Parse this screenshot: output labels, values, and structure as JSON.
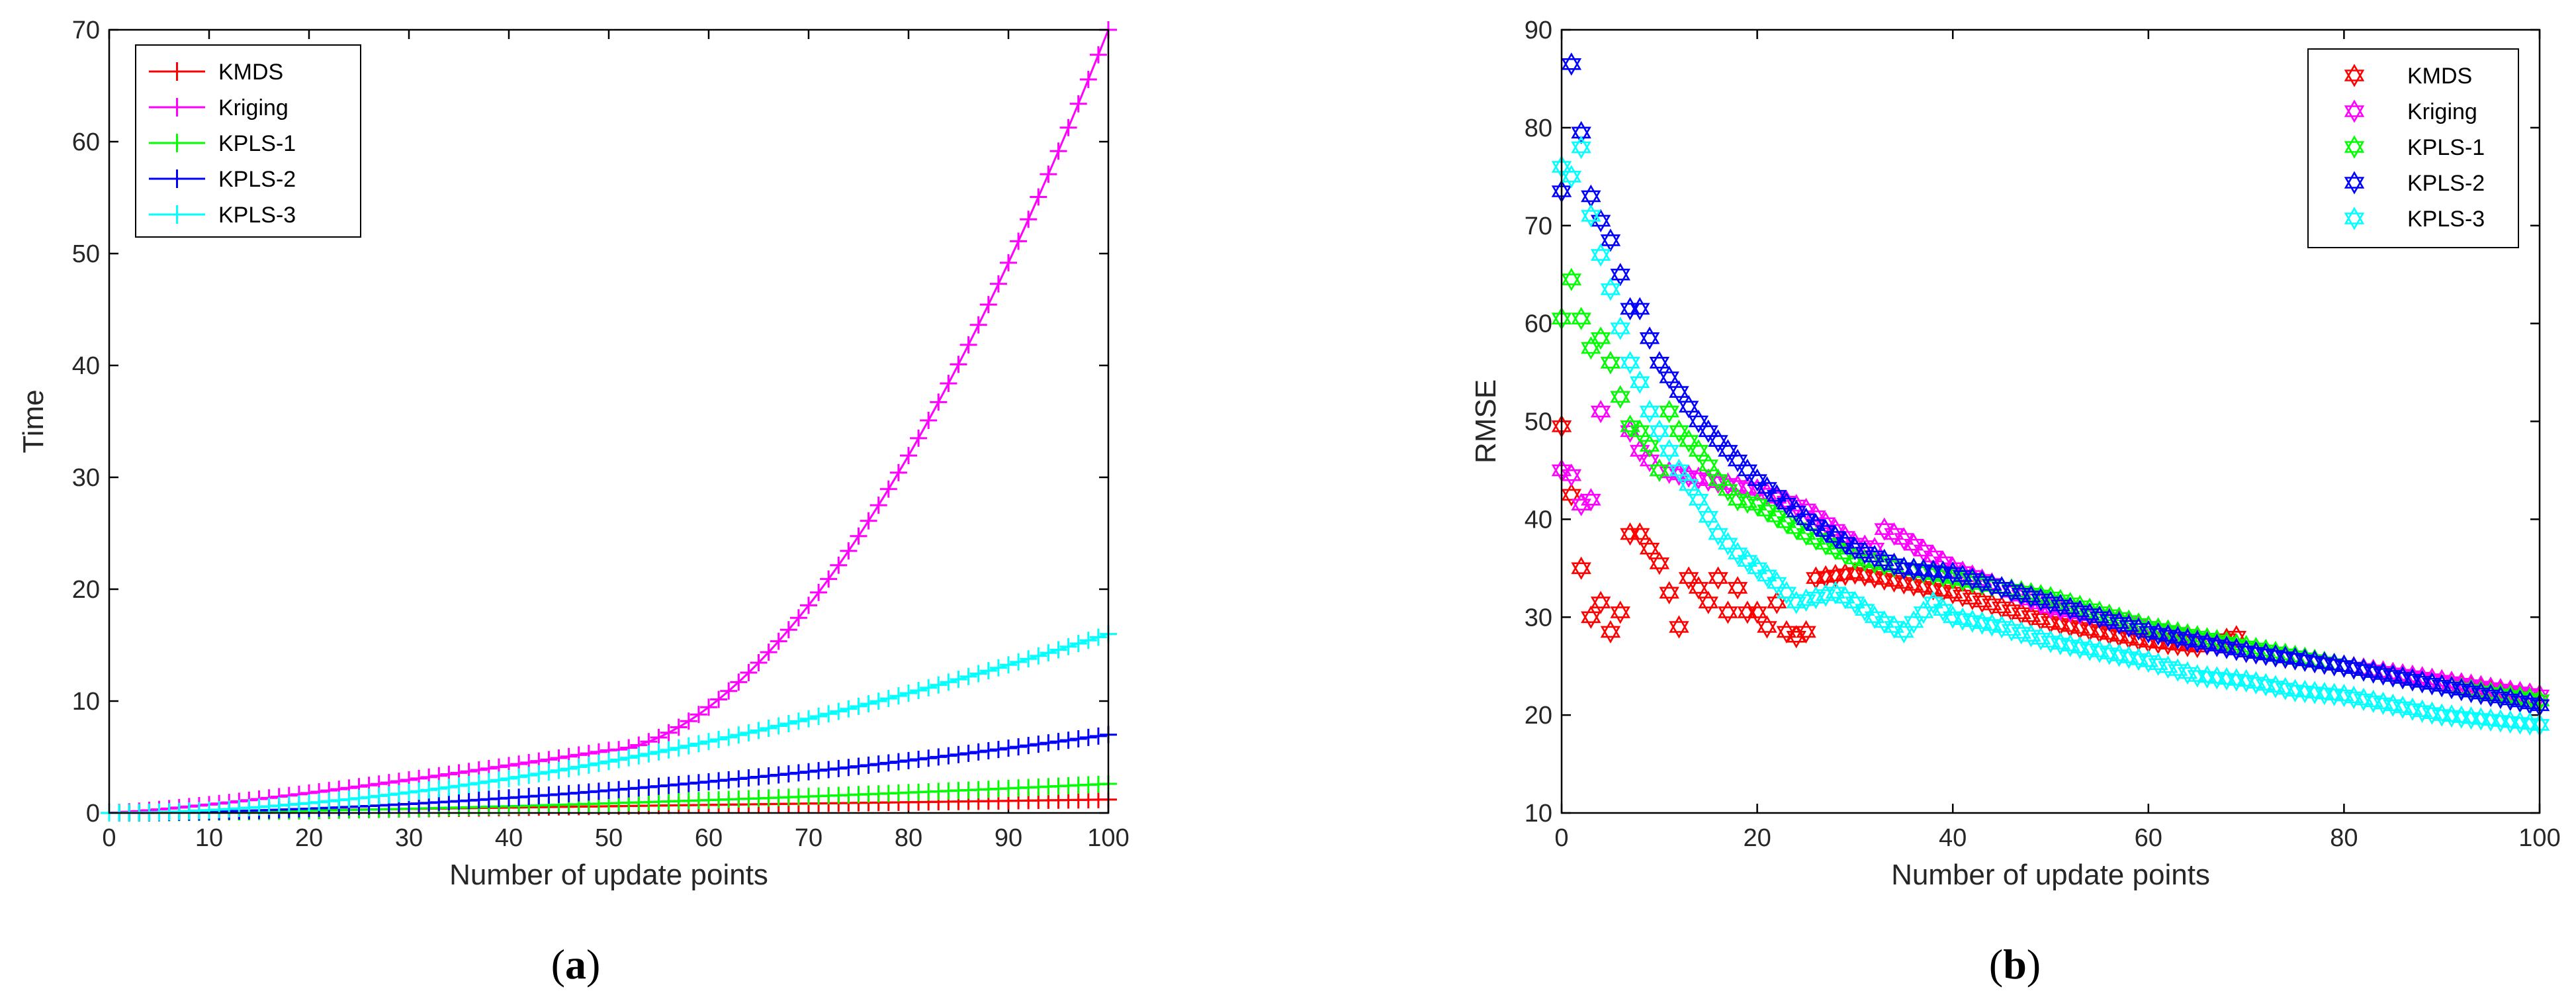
{
  "chart_data": [
    {
      "id": "a",
      "type": "line",
      "caption_open": "(",
      "caption_letter": "a",
      "caption_close": ")",
      "xlabel": "Number of update points",
      "ylabel": "Time",
      "xlim": [
        0,
        100
      ],
      "ylim": [
        0,
        70
      ],
      "xticks": [
        0,
        10,
        20,
        30,
        40,
        50,
        60,
        70,
        80,
        90,
        100
      ],
      "yticks": [
        0,
        10,
        20,
        30,
        40,
        50,
        60,
        70
      ],
      "legend_position": "top-left",
      "marker": "+",
      "series": [
        {
          "name": "KMDS",
          "color": "#ff0000",
          "model": "linear",
          "end": 1.2
        },
        {
          "name": "Kriging",
          "color": "#ff00ff",
          "model": "kriging",
          "at50": 5.6,
          "end": 70
        },
        {
          "name": "KPLS-1",
          "color": "#00ff00",
          "model": "power",
          "end": 2.6,
          "power": 1.6
        },
        {
          "name": "KPLS-2",
          "color": "#0000ff",
          "model": "power",
          "end": 7.0,
          "power": 1.8
        },
        {
          "name": "KPLS-3",
          "color": "#00ffff",
          "model": "power",
          "end": 16.0,
          "power": 1.8
        }
      ]
    },
    {
      "id": "b",
      "type": "scatter",
      "caption_open": "(",
      "caption_letter": "b",
      "caption_close": ")",
      "xlabel": "Number of update points",
      "ylabel": "RMSE",
      "xlim": [
        0,
        100
      ],
      "ylim": [
        10,
        90
      ],
      "xticks": [
        0,
        20,
        40,
        60,
        80,
        100
      ],
      "yticks": [
        10,
        20,
        30,
        40,
        50,
        60,
        70,
        80,
        90
      ],
      "legend_position": "top-right",
      "marker": "hexagram",
      "series": [
        {
          "name": "KMDS",
          "color": "#ff0000",
          "anchors": [
            [
              0,
              49.5
            ],
            [
              1,
              42.5
            ],
            [
              2,
              35
            ],
            [
              3,
              30
            ],
            [
              4,
              31.5
            ],
            [
              5,
              28.5
            ],
            [
              6,
              30.5
            ],
            [
              7,
              38.5
            ],
            [
              8,
              38.5
            ],
            [
              9,
              37
            ],
            [
              10,
              35.5
            ],
            [
              11,
              32.5
            ],
            [
              12,
              29
            ],
            [
              13,
              34
            ],
            [
              14,
              33
            ],
            [
              15,
              31.5
            ],
            [
              16,
              34
            ],
            [
              17,
              30.5
            ],
            [
              18,
              33
            ],
            [
              19,
              30.5
            ],
            [
              20,
              30.5
            ],
            [
              21,
              29
            ],
            [
              22,
              31.5
            ],
            [
              23,
              28.5
            ],
            [
              24,
              28
            ],
            [
              25,
              28.5
            ],
            [
              26,
              34
            ],
            [
              30,
              34.5
            ],
            [
              35,
              33.5
            ],
            [
              40,
              32.5
            ],
            [
              45,
              31
            ],
            [
              50,
              29.5
            ],
            [
              55,
              28.5
            ],
            [
              60,
              27.5
            ],
            [
              65,
              27
            ],
            [
              69,
              28
            ],
            [
              70,
              26.5
            ],
            [
              80,
              25
            ],
            [
              90,
              23.5
            ],
            [
              100,
              21.5
            ]
          ]
        },
        {
          "name": "Kriging",
          "color": "#ff00ff",
          "anchors": [
            [
              0,
              45
            ],
            [
              1,
              44.5
            ],
            [
              2,
              41.5
            ],
            [
              3,
              42
            ],
            [
              4,
              51
            ],
            [
              5,
              56
            ],
            [
              6,
              52.5
            ],
            [
              7,
              49
            ],
            [
              8,
              47
            ],
            [
              10,
              45
            ],
            [
              15,
              44
            ],
            [
              20,
              43
            ],
            [
              25,
              41
            ],
            [
              30,
              37.5
            ],
            [
              32,
              37
            ],
            [
              33,
              39
            ],
            [
              35,
              38
            ],
            [
              40,
              35
            ],
            [
              45,
              33
            ],
            [
              50,
              31
            ],
            [
              55,
              30
            ],
            [
              60,
              29
            ],
            [
              70,
              26.5
            ],
            [
              80,
              25
            ],
            [
              90,
              23.5
            ],
            [
              100,
              22
            ]
          ]
        },
        {
          "name": "KPLS-1",
          "color": "#00ff00",
          "anchors": [
            [
              0,
              60.5
            ],
            [
              1,
              64.5
            ],
            [
              2,
              60.5
            ],
            [
              3,
              57.5
            ],
            [
              4,
              58.5
            ],
            [
              5,
              56
            ],
            [
              6,
              52.5
            ],
            [
              7,
              49.5
            ],
            [
              8,
              49
            ],
            [
              9,
              47.5
            ],
            [
              10,
              45
            ],
            [
              11,
              51
            ],
            [
              12,
              49
            ],
            [
              14,
              47
            ],
            [
              16,
              44
            ],
            [
              18,
              42
            ],
            [
              20,
              41.5
            ],
            [
              25,
              38.5
            ],
            [
              30,
              36
            ],
            [
              35,
              35
            ],
            [
              40,
              34
            ],
            [
              45,
              33
            ],
            [
              50,
              32
            ],
            [
              55,
              30.5
            ],
            [
              60,
              29
            ],
            [
              70,
              27
            ],
            [
              80,
              25
            ],
            [
              90,
              23
            ],
            [
              100,
              21.5
            ]
          ]
        },
        {
          "name": "KPLS-2",
          "color": "#0000ff",
          "anchors": [
            [
              0,
              73.5
            ],
            [
              1,
              86.5
            ],
            [
              2,
              79.5
            ],
            [
              3,
              73
            ],
            [
              4,
              70.5
            ],
            [
              5,
              68.5
            ],
            [
              6,
              65
            ],
            [
              7,
              61.5
            ],
            [
              8,
              61.5
            ],
            [
              9,
              58.5
            ],
            [
              10,
              56
            ],
            [
              12,
              53
            ],
            [
              14,
              50
            ],
            [
              16,
              48
            ],
            [
              18,
              46
            ],
            [
              20,
              44
            ],
            [
              25,
              40
            ],
            [
              30,
              37
            ],
            [
              35,
              35
            ],
            [
              40,
              34.5
            ],
            [
              45,
              33
            ],
            [
              50,
              31.5
            ],
            [
              55,
              30
            ],
            [
              60,
              28.5
            ],
            [
              70,
              26.5
            ],
            [
              80,
              25
            ],
            [
              90,
              23
            ],
            [
              100,
              21
            ]
          ]
        },
        {
          "name": "KPLS-3",
          "color": "#00ffff",
          "anchors": [
            [
              0,
              76
            ],
            [
              1,
              75
            ],
            [
              2,
              78
            ],
            [
              3,
              71
            ],
            [
              4,
              67
            ],
            [
              5,
              63.5
            ],
            [
              6,
              59.5
            ],
            [
              7,
              56
            ],
            [
              8,
              54
            ],
            [
              9,
              51
            ],
            [
              10,
              49
            ],
            [
              12,
              45
            ],
            [
              14,
              42
            ],
            [
              16,
              38.5
            ],
            [
              18,
              36.5
            ],
            [
              20,
              35
            ],
            [
              22,
              33.5
            ],
            [
              24,
              31.5
            ],
            [
              26,
              32
            ],
            [
              28,
              32.5
            ],
            [
              30,
              31.5
            ],
            [
              32,
              30
            ],
            [
              35,
              28.5
            ],
            [
              38,
              31.5
            ],
            [
              40,
              30
            ],
            [
              45,
              29
            ],
            [
              50,
              27.5
            ],
            [
              55,
              26.5
            ],
            [
              60,
              25.5
            ],
            [
              65,
              24
            ],
            [
              70,
              23.5
            ],
            [
              75,
              22.5
            ],
            [
              80,
              22
            ],
            [
              85,
              21
            ],
            [
              90,
              20
            ],
            [
              95,
              19.5
            ],
            [
              100,
              19
            ]
          ]
        }
      ]
    }
  ]
}
